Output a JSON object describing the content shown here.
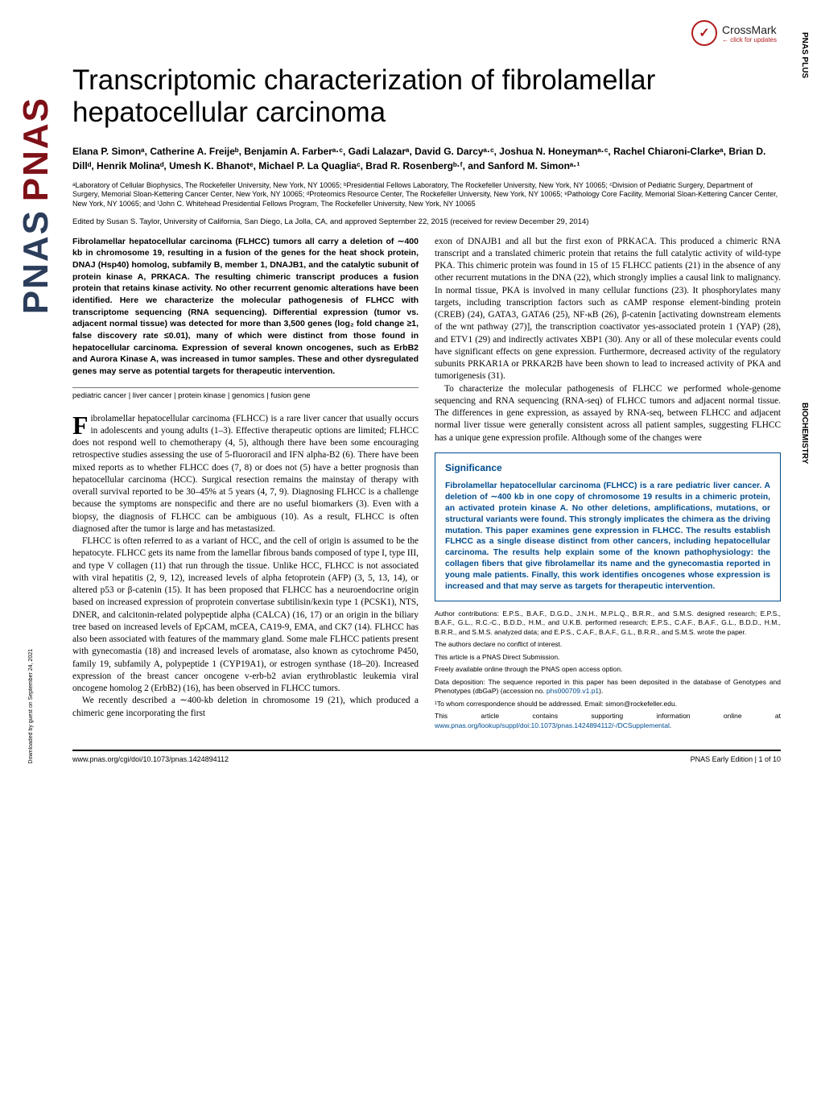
{
  "pnas_logo_1": "PNAS",
  "pnas_logo_2": "PNAS",
  "side_label_1": "PNAS PLUS",
  "side_label_2": "BIOCHEMISTRY",
  "crossmark": {
    "label": "CrossMark",
    "sub": "← click for updates"
  },
  "title": "Transcriptomic characterization of fibrolamellar hepatocellular carcinoma",
  "authors": "Elana P. Simonᵃ, Catherine A. Freijeᵇ, Benjamin A. Farberᵃ·ᶜ, Gadi Lalazarᵃ, David G. Darcyᵃ·ᶜ, Joshua N. Honeymanᵃ·ᶜ, Rachel Chiaroni-Clarkeᵃ, Brian D. Dillᵈ, Henrik Molinaᵈ, Umesh K. Bhanotᵉ, Michael P. La Quagliaᶜ, Brad R. Rosenbergᵇ·ᶠ, and Sanford M. Simonᵃ·¹",
  "affiliations": "ᵃLaboratory of Cellular Biophysics, The Rockefeller University, New York, NY 10065; ᵇPresidential Fellows Laboratory, The Rockefeller University, New York, NY 10065; ᶜDivision of Pediatric Surgery, Department of Surgery, Memorial Sloan-Kettering Cancer Center, New York, NY 10065; ᵈProteomics Resource Center, The Rockefeller University, New York, NY 10065; ᵉPathology Core Facility, Memorial Sloan-Kettering Cancer Center, New York, NY 10065; and ᶠJohn C. Whitehead Presidential Fellows Program, The Rockefeller University, New York, NY 10065",
  "edited_by": "Edited by Susan S. Taylor, University of California, San Diego, La Jolla, CA, and approved September 22, 2015 (received for review December 29, 2014)",
  "abstract": "Fibrolamellar hepatocellular carcinoma (FLHCC) tumors all carry a deletion of ∼400 kb in chromosome 19, resulting in a fusion of the genes for the heat shock protein, DNAJ (Hsp40) homolog, subfamily B, member 1, DNAJB1, and the catalytic subunit of protein kinase A, PRKACA. The resulting chimeric transcript produces a fusion protein that retains kinase activity. No other recurrent genomic alterations have been identified. Here we characterize the molecular pathogenesis of FLHCC with transcriptome sequencing (RNA sequencing). Differential expression (tumor vs. adjacent normal tissue) was detected for more than 3,500 genes (log₂ fold change ≥1, false discovery rate ≤0.01), many of which were distinct from those found in hepatocellular carcinoma. Expression of several known oncogenes, such as ErbB2 and Aurora Kinase A, was increased in tumor samples. These and other dysregulated genes may serve as potential targets for therapeutic intervention.",
  "keywords": "pediatric cancer | liver cancer | protein kinase | genomics | fusion gene",
  "body_p1_first": "F",
  "body_p1": "ibrolamellar hepatocellular carcinoma (FLHCC) is a rare liver cancer that usually occurs in adolescents and young adults (1–3). Effective therapeutic options are limited; FLHCC does not respond well to chemotherapy (4, 5), although there have been some encouraging retrospective studies assessing the use of 5-fluororacil and IFN alpha-B2 (6). There have been mixed reports as to whether FLHCC does (7, 8) or does not (5) have a better prognosis than hepatocellular carcinoma (HCC). Surgical resection remains the mainstay of therapy with overall survival reported to be 30–45% at 5 years (4, 7, 9). Diagnosing FLHCC is a challenge because the symptoms are nonspecific and there are no useful biomarkers (3). Even with a biopsy, the diagnosis of FLHCC can be ambiguous (10). As a result, FLHCC is often diagnosed after the tumor is large and has metastasized.",
  "body_p2": "FLHCC is often referred to as a variant of HCC, and the cell of origin is assumed to be the hepatocyte. FLHCC gets its name from the lamellar fibrous bands composed of type I, type III, and type V collagen (11) that run through the tissue. Unlike HCC, FLHCC is not associated with viral hepatitis (2, 9, 12), increased levels of alpha fetoprotein (AFP) (3, 5, 13, 14), or altered p53 or β-catenin (15). It has been proposed that FLHCC has a neuroendocrine origin based on increased expression of proprotein convertase subtilisin/kexin type 1 (PCSK1), NTS, DNER, and calcitonin-related polypeptide alpha (CALCA) (16, 17) or an origin in the biliary tree based on increased levels of EpCAM, mCEA, CA19-9, EMA, and CK7 (14). FLHCC has also been associated with features of the mammary gland. Some male FLHCC patients present with gynecomastia (18) and increased levels of aromatase, also known as cytochrome P450, family 19, subfamily A, polypeptide 1 (CYP19A1), or estrogen synthase (18–20). Increased expression of the breast cancer oncogene v-erb-b2 avian erythroblastic leukemia viral oncogene homolog 2 (ErbB2) (16), has been observed in FLHCC tumors.",
  "body_p3": "We recently described a ∼400-kb deletion in chromosome 19 (21), which produced a chimeric gene incorporating the first",
  "body_p4": "exon of DNAJB1 and all but the first exon of PRKACA. This produced a chimeric RNA transcript and a translated chimeric protein that retains the full catalytic activity of wild-type PKA. This chimeric protein was found in 15 of 15 FLHCC patients (21) in the absence of any other recurrent mutations in the DNA (22), which strongly implies a causal link to malignancy. In normal tissue, PKA is involved in many cellular functions (23). It phosphorylates many targets, including transcription factors such as cAMP response element-binding protein (CREB) (24), GATA3, GATA6 (25), NF-κB (26), β-catenin [activating downstream elements of the wnt pathway (27)], the transcription coactivator yes-associated protein 1 (YAP) (28), and ETV1 (29) and indirectly activates XBP1 (30). Any or all of these molecular events could have significant effects on gene expression. Furthermore, decreased activity of the regulatory subunits PRKAR1A or PRKAR2B have been shown to lead to increased activity of PKA and tumorigenesis (31).",
  "body_p5": "To characterize the molecular pathogenesis of FLHCC we performed whole-genome sequencing and RNA sequencing (RNA-seq) of FLHCC tumors and adjacent normal tissue. The differences in gene expression, as assayed by RNA-seq, between FLHCC and adjacent normal liver tissue were generally consistent across all patient samples, suggesting FLHCC has a unique gene expression profile. Although some of the changes were",
  "significance": {
    "title": "Significance",
    "body": "Fibrolamellar hepatocellular carcinoma (FLHCC) is a rare pediatric liver cancer. A deletion of ∼400 kb in one copy of chromosome 19 results in a chimeric protein, an activated protein kinase A. No other deletions, amplifications, mutations, or structural variants were found. This strongly implicates the chimera as the driving mutation. This paper examines gene expression in FLHCC. The results establish FLHCC as a single disease distinct from other cancers, including hepatocellular carcinoma. The results help explain some of the known pathophysiology: the collagen fibers that give fibrolamellar its name and the gynecomastia reported in young male patients. Finally, this work identifies oncogenes whose expression is increased and that may serve as targets for therapeutic intervention."
  },
  "footnotes": {
    "contributions": "Author contributions: E.P.S., B.A.F., D.G.D., J.N.H., M.P.L.Q., B.R.R., and S.M.S. designed research; E.P.S., B.A.F., G.L., R.C.-C., B.D.D., H.M., and U.K.B. performed research; E.P.S., C.A.F., B.A.F., G.L., B.D.D., H.M., B.R.R., and S.M.S. analyzed data; and E.P.S., C.A.F., B.A.F., G.L., B.R.R., and S.M.S. wrote the paper.",
    "conflict": "The authors declare no conflict of interest.",
    "direct": "This article is a PNAS Direct Submission.",
    "access": "Freely available online through the PNAS open access option.",
    "deposition": "Data deposition: The sequence reported in this paper has been deposited in the database of Genotypes and Phenotypes (dbGaP) (accession no. ",
    "deposition_link": "phs000709.v1.p1",
    "deposition_end": ").",
    "correspondence": "¹To whom correspondence should be addressed. Email: simon@rockefeller.edu.",
    "supporting": "This article contains supporting information online at ",
    "supporting_link": "www.pnas.org/lookup/suppl/doi:10.1073/pnas.1424894112/-/DCSupplemental",
    "supporting_end": "."
  },
  "footer": {
    "doi": "www.pnas.org/cgi/doi/10.1073/pnas.1424894112",
    "page": "PNAS Early Edition | 1 of 10"
  },
  "download_note": "Downloaded by guest on September 24, 2021"
}
